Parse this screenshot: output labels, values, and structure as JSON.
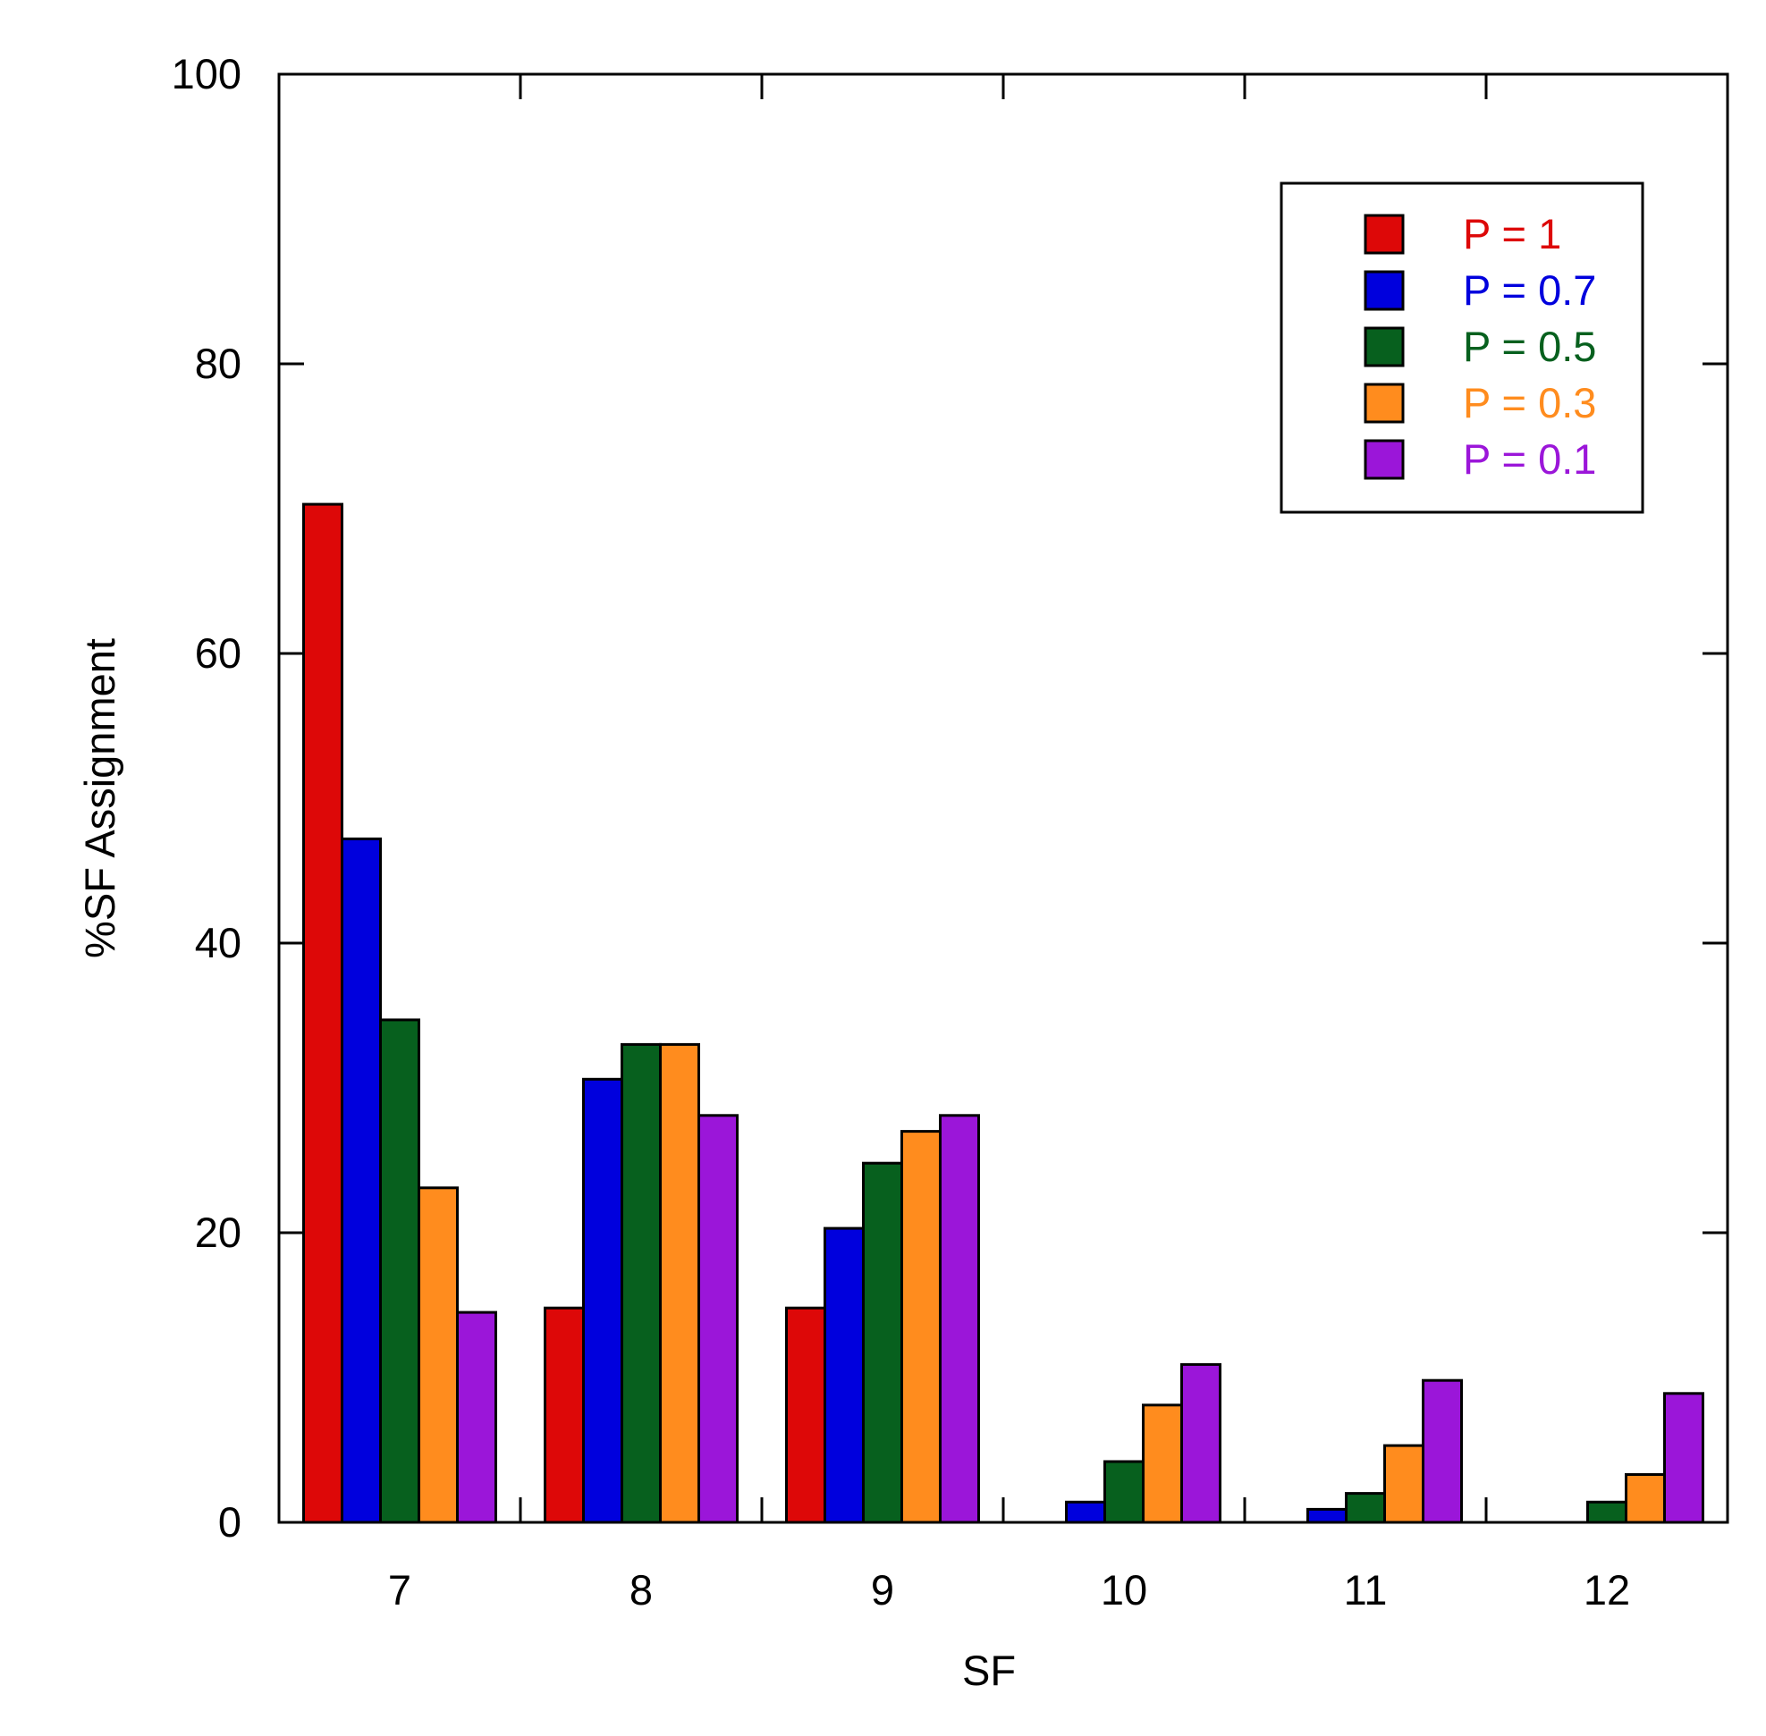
{
  "chart_data": {
    "type": "bar",
    "title": "",
    "xlabel": "SF",
    "ylabel": "%SF Assignment",
    "categories": [
      "7",
      "8",
      "9",
      "10",
      "11",
      "12"
    ],
    "ylim": [
      0,
      100
    ],
    "yticks": [
      "0",
      "20",
      "40",
      "60",
      "80",
      "100"
    ],
    "grid": false,
    "legend_position": "top-right",
    "series": [
      {
        "name": "P = 1",
        "color": "#dd0808",
        "values": [
          70.3,
          14.8,
          14.8,
          0,
          0,
          0
        ]
      },
      {
        "name": "P = 0.7",
        "color": "#0000dd",
        "values": [
          47.2,
          30.6,
          20.3,
          1.4,
          0.9,
          0
        ]
      },
      {
        "name": "P = 0.5",
        "color": "#07601e",
        "values": [
          34.7,
          33.0,
          24.8,
          4.2,
          2.0,
          1.4
        ]
      },
      {
        "name": "P = 0.3",
        "color": "#ff8c1e",
        "values": [
          23.1,
          33.0,
          27.0,
          8.1,
          5.3,
          3.3
        ]
      },
      {
        "name": "P = 0.1",
        "color": "#9b16d9",
        "values": [
          14.5,
          28.1,
          28.1,
          10.9,
          9.8,
          8.9
        ]
      }
    ]
  }
}
